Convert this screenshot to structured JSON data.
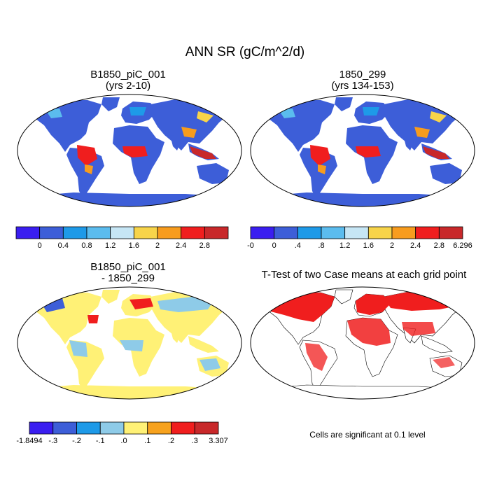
{
  "figure": {
    "title": "ANN SR (gC/m^2/d)",
    "note": "Cells are significant at 0.1 level"
  },
  "panels": [
    {
      "title": "B1850_piC_001",
      "subtitle": "(yrs 2-10)"
    },
    {
      "title": "1850_299",
      "subtitle": "(yrs 134-153)"
    },
    {
      "title": "B1850_piC_001",
      "subtitle": "- 1850_299"
    },
    {
      "title": "T-Test of two Case means at each grid point",
      "subtitle": ""
    }
  ],
  "colorbars": [
    {
      "colors": [
        "#3a1ef0",
        "#3d5ed8",
        "#1e9ae8",
        "#5bbcee",
        "#c6e6f5",
        "#f7d44a",
        "#f79c1e",
        "#f01e1e",
        "#c8282a"
      ],
      "labels": [
        "0",
        "0.4",
        "0.8",
        "1.2",
        "1.6",
        "2",
        "2.4",
        "2.8"
      ],
      "end_labels": [
        "",
        ""
      ]
    },
    {
      "colors": [
        "#3a1ef0",
        "#3d5ed8",
        "#1e9ae8",
        "#5bbcee",
        "#c6e6f5",
        "#f7d44a",
        "#f79c1e",
        "#f01e1e",
        "#c8282a"
      ],
      "labels": [
        "0",
        ".4",
        ".8",
        "1.2",
        "1.6",
        "2",
        "2.4",
        "2.8"
      ],
      "end_labels": [
        "-0",
        "6.296"
      ]
    },
    {
      "colors": [
        "#3a1ef0",
        "#3d5ed8",
        "#1e9ae8",
        "#8ecbe8",
        "#fff176",
        "#f7a21e",
        "#f01e1e",
        "#c8282a"
      ],
      "labels": [
        "-.3",
        "-.2",
        "-.1",
        ".0",
        ".1",
        ".2",
        ".3"
      ],
      "end_labels": [
        "-1.8494",
        "3.307"
      ]
    }
  ]
}
